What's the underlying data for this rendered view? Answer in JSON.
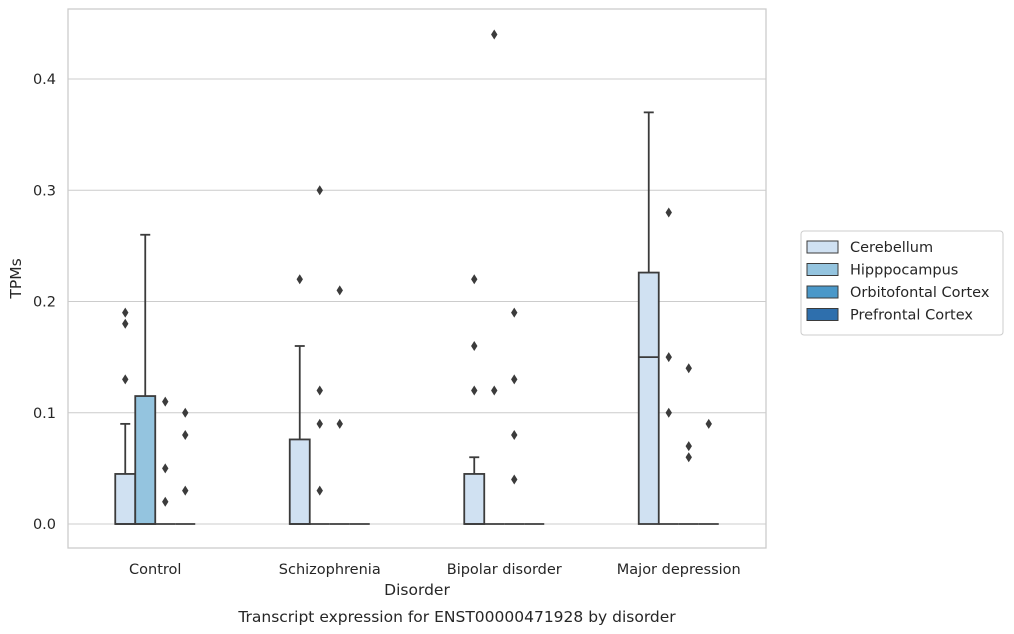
{
  "chart_data": {
    "type": "box",
    "title": "",
    "caption": "Transcript expression for ENST00000471928 by disorder",
    "xlabel": "Disorder",
    "ylabel": "TPMs",
    "ylim": [
      -0.022,
      0.463
    ],
    "yticks": [
      0.0,
      0.1,
      0.2,
      0.3,
      0.4
    ],
    "ytick_labels": [
      "0.0",
      "0.1",
      "0.2",
      "0.3",
      "0.4"
    ],
    "categories": [
      "Control",
      "Schizophrenia",
      "Bipolar disorder",
      "Major depression"
    ],
    "grid": "horizontal",
    "legend_position": "right",
    "series": [
      {
        "name": "Cerebellum",
        "color": "#d0e1f2",
        "boxes": [
          {
            "q1": 0,
            "median": 0,
            "q3": 0.045,
            "whisker_low": 0,
            "whisker_high": 0.09,
            "outliers": [
              0.13,
              0.18,
              0.19
            ]
          },
          {
            "q1": 0,
            "median": 0,
            "q3": 0.076,
            "whisker_low": 0,
            "whisker_high": 0.16,
            "outliers": [
              0.22
            ]
          },
          {
            "q1": 0,
            "median": 0,
            "q3": 0.045,
            "whisker_low": 0,
            "whisker_high": 0.06,
            "outliers": [
              0.12,
              0.16,
              0.22
            ]
          },
          {
            "q1": 0,
            "median": 0.15,
            "q3": 0.226,
            "whisker_low": 0,
            "whisker_high": 0.37,
            "outliers": []
          }
        ]
      },
      {
        "name": "Hipppocampus",
        "color": "#94c4df",
        "boxes": [
          {
            "q1": 0,
            "median": 0,
            "q3": 0.115,
            "whisker_low": 0,
            "whisker_high": 0.26,
            "outliers": []
          },
          {
            "q1": 0,
            "median": 0,
            "q3": 0,
            "whisker_low": 0,
            "whisker_high": 0,
            "outliers": [
              0.03,
              0.09,
              0.12,
              0.3
            ]
          },
          {
            "q1": 0,
            "median": 0,
            "q3": 0,
            "whisker_low": 0,
            "whisker_high": 0,
            "outliers": [
              0.12,
              0.44
            ]
          },
          {
            "q1": 0,
            "median": 0,
            "q3": 0,
            "whisker_low": 0,
            "whisker_high": 0,
            "outliers": [
              0.1,
              0.15,
              0.28
            ]
          }
        ]
      },
      {
        "name": "Orbitofontal Cortex",
        "color": "#4a98c9",
        "boxes": [
          {
            "q1": 0,
            "median": 0,
            "q3": 0,
            "whisker_low": 0,
            "whisker_high": 0,
            "outliers": [
              0.02,
              0.05,
              0.11
            ]
          },
          {
            "q1": 0,
            "median": 0,
            "q3": 0,
            "whisker_low": 0,
            "whisker_high": 0,
            "outliers": [
              0.09,
              0.21
            ]
          },
          {
            "q1": 0,
            "median": 0,
            "q3": 0,
            "whisker_low": 0,
            "whisker_high": 0,
            "outliers": [
              0.04,
              0.08,
              0.13,
              0.19
            ]
          },
          {
            "q1": 0,
            "median": 0,
            "q3": 0,
            "whisker_low": 0,
            "whisker_high": 0,
            "outliers": [
              0.06,
              0.07,
              0.14
            ]
          }
        ]
      },
      {
        "name": "Prefrontal Cortex",
        "color": "#2e6fad",
        "boxes": [
          {
            "q1": 0,
            "median": 0,
            "q3": 0,
            "whisker_low": 0,
            "whisker_high": 0,
            "outliers": [
              0.03,
              0.08,
              0.1
            ]
          },
          {
            "q1": 0,
            "median": 0,
            "q3": 0,
            "whisker_low": 0,
            "whisker_high": 0,
            "outliers": []
          },
          {
            "q1": 0,
            "median": 0,
            "q3": 0,
            "whisker_low": 0,
            "whisker_high": 0,
            "outliers": []
          },
          {
            "q1": 0,
            "median": 0,
            "q3": 0,
            "whisker_low": 0,
            "whisker_high": 0,
            "outliers": [
              0.09
            ]
          }
        ]
      }
    ]
  }
}
